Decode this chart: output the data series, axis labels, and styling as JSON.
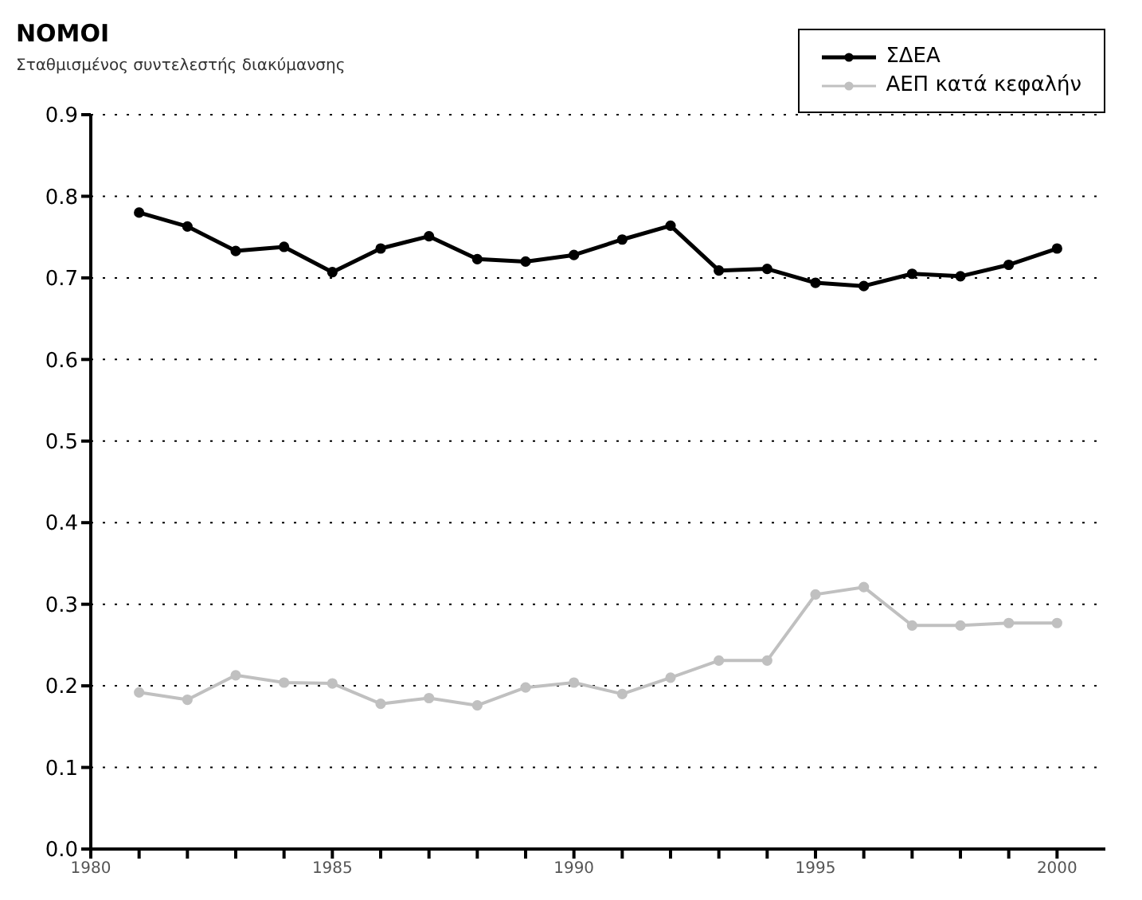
{
  "chart_data": {
    "type": "line",
    "title": "ΝΟΜΟΙ",
    "subtitle": "Σταθμισμένος συντελεστής διακύμανσης",
    "x": [
      1981,
      1982,
      1983,
      1984,
      1985,
      1986,
      1987,
      1988,
      1989,
      1990,
      1991,
      1992,
      1993,
      1994,
      1995,
      1996,
      1997,
      1998,
      1999,
      2000
    ],
    "series": [
      {
        "name": "ΣΔΕΑ",
        "color": "#000000",
        "values": [
          0.78,
          0.763,
          0.733,
          0.738,
          0.707,
          0.736,
          0.751,
          0.723,
          0.72,
          0.728,
          0.747,
          0.764,
          0.709,
          0.711,
          0.694,
          0.69,
          0.705,
          0.702,
          0.716,
          0.736
        ]
      },
      {
        "name": "ΑΕΠ κατά κεφαλήν",
        "color": "#c0c0c0",
        "values": [
          0.192,
          0.183,
          0.213,
          0.204,
          0.203,
          0.178,
          0.185,
          0.176,
          0.198,
          0.204,
          0.19,
          0.21,
          0.231,
          0.231,
          0.312,
          0.321,
          0.274,
          0.274,
          0.277,
          0.277
        ]
      }
    ],
    "xlim": [
      1980,
      2001
    ],
    "xticks": [
      1980,
      {
        "value": 1981,
        "label": null
      },
      {
        "value": 1982,
        "label": null
      },
      {
        "value": 1983,
        "label": null
      },
      {
        "value": 1984,
        "label": null
      },
      1985,
      {
        "value": 1986,
        "label": null
      },
      {
        "value": 1987,
        "label": null
      },
      {
        "value": 1988,
        "label": null
      },
      {
        "value": 1989,
        "label": null
      },
      1990,
      {
        "value": 1991,
        "label": null
      },
      {
        "value": 1992,
        "label": null
      },
      {
        "value": 1993,
        "label": null
      },
      {
        "value": 1994,
        "label": null
      },
      1995,
      {
        "value": 1996,
        "label": null
      },
      {
        "value": 1997,
        "label": null
      },
      {
        "value": 1998,
        "label": null
      },
      {
        "value": 1999,
        "label": null
      },
      2000
    ],
    "ylim": [
      0,
      0.9
    ],
    "yticks": [
      {
        "value": 0,
        "label": "0.0"
      },
      0.1,
      0.2,
      0.3,
      0.4,
      0.5,
      0.6,
      0.7,
      0.8,
      0.9
    ],
    "grid": "y",
    "legend": "top right",
    "marker": "circle",
    "line_style": "solid"
  }
}
